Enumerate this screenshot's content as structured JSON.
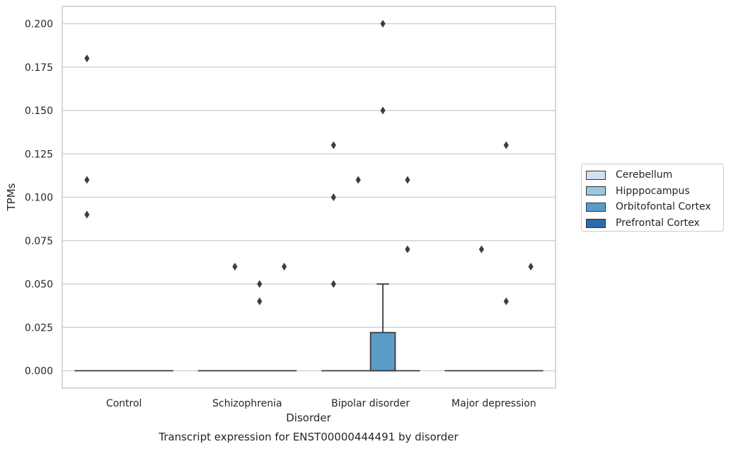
{
  "chart_data": {
    "type": "box",
    "title": "Transcript expression for ENST00000444491 by disorder",
    "xlabel": "Disorder",
    "ylabel": "TPMs",
    "ylim": [
      -0.01,
      0.21
    ],
    "yticks": [
      0.0,
      0.025,
      0.05,
      0.075,
      0.1,
      0.125,
      0.15,
      0.175,
      0.2
    ],
    "ytick_labels": [
      "0.000",
      "0.025",
      "0.050",
      "0.075",
      "0.100",
      "0.125",
      "0.150",
      "0.175",
      "0.200"
    ],
    "categories": [
      "Control",
      "Schizophrenia",
      "Bipolar disorder",
      "Major depression"
    ],
    "grid": true,
    "legend_position": "right",
    "series": [
      {
        "name": "Cerebellum",
        "color": "#d0e1f2",
        "boxes": [
          {
            "q1": 0,
            "median": 0,
            "q3": 0,
            "whisker_low": 0,
            "whisker_high": 0,
            "outliers": [
              0.18,
              0.11,
              0.09
            ]
          },
          {
            "q1": 0,
            "median": 0,
            "q3": 0,
            "whisker_low": 0,
            "whisker_high": 0,
            "outliers": []
          },
          {
            "q1": 0,
            "median": 0,
            "q3": 0,
            "whisker_low": 0,
            "whisker_high": 0,
            "outliers": [
              0.13,
              0.1,
              0.05
            ]
          },
          {
            "q1": 0,
            "median": 0,
            "q3": 0,
            "whisker_low": 0,
            "whisker_high": 0,
            "outliers": []
          }
        ]
      },
      {
        "name": "Hipppocampus",
        "color": "#9ac8e0",
        "boxes": [
          {
            "q1": 0,
            "median": 0,
            "q3": 0,
            "whisker_low": 0,
            "whisker_high": 0,
            "outliers": []
          },
          {
            "q1": 0,
            "median": 0,
            "q3": 0,
            "whisker_low": 0,
            "whisker_high": 0,
            "outliers": [
              0.06
            ]
          },
          {
            "q1": 0,
            "median": 0,
            "q3": 0,
            "whisker_low": 0,
            "whisker_high": 0,
            "outliers": [
              0.11
            ]
          },
          {
            "q1": 0,
            "median": 0,
            "q3": 0,
            "whisker_low": 0,
            "whisker_high": 0,
            "outliers": [
              0.07
            ]
          }
        ]
      },
      {
        "name": "Orbitofontal Cortex",
        "color": "#5a9bc8",
        "boxes": [
          {
            "q1": 0,
            "median": 0,
            "q3": 0,
            "whisker_low": 0,
            "whisker_high": 0,
            "outliers": []
          },
          {
            "q1": 0,
            "median": 0,
            "q3": 0,
            "whisker_low": 0,
            "whisker_high": 0,
            "outliers": [
              0.05,
              0.04
            ]
          },
          {
            "q1": 0,
            "median": 0,
            "q3": 0.022,
            "whisker_low": 0,
            "whisker_high": 0.05,
            "outliers": [
              0.2,
              0.15
            ]
          },
          {
            "q1": 0,
            "median": 0,
            "q3": 0,
            "whisker_low": 0,
            "whisker_high": 0,
            "outliers": [
              0.13,
              0.04
            ]
          }
        ]
      },
      {
        "name": "Prefrontal Cortex",
        "color": "#2a6aad",
        "boxes": [
          {
            "q1": 0,
            "median": 0,
            "q3": 0,
            "whisker_low": 0,
            "whisker_high": 0,
            "outliers": []
          },
          {
            "q1": 0,
            "median": 0,
            "q3": 0,
            "whisker_low": 0,
            "whisker_high": 0,
            "outliers": [
              0.06
            ]
          },
          {
            "q1": 0,
            "median": 0,
            "q3": 0,
            "whisker_low": 0,
            "whisker_high": 0,
            "outliers": [
              0.11,
              0.07
            ]
          },
          {
            "q1": 0,
            "median": 0,
            "q3": 0,
            "whisker_low": 0,
            "whisker_high": 0,
            "outliers": [
              0.06
            ]
          }
        ]
      }
    ]
  }
}
